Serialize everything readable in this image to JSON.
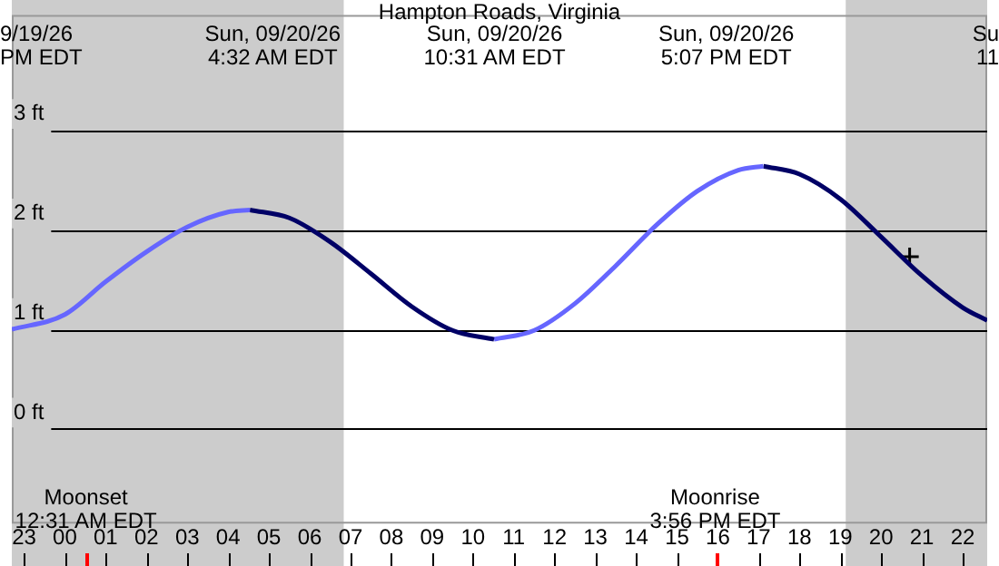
{
  "chart_data": {
    "type": "line",
    "title": "Hampton Roads, Virginia",
    "xlim": [
      "--09-19T22:42",
      "--09-20T22:36"
    ],
    "ylim": [
      -0.95,
      4.16
    ],
    "xticks": [
      {
        "value": "--09-19T23:00",
        "label": "23"
      },
      {
        "value": "--09-20T00:00",
        "label": "00"
      },
      {
        "value": "--09-20T01:00",
        "label": "01"
      },
      {
        "value": "--09-20T02:00",
        "label": "02"
      },
      {
        "value": "--09-20T03:00",
        "label": "03"
      },
      {
        "value": "--09-20T04:00",
        "label": "04"
      },
      {
        "value": "--09-20T05:00",
        "label": "05"
      },
      {
        "value": "--09-20T06:00",
        "label": "06"
      },
      {
        "value": "--09-20T07:00",
        "label": "07"
      },
      {
        "value": "--09-20T08:00",
        "label": "08"
      },
      {
        "value": "--09-20T09:00",
        "label": "09"
      },
      {
        "value": "--09-20T10:00",
        "label": "10"
      },
      {
        "value": "--09-20T11:00",
        "label": "11"
      },
      {
        "value": "--09-20T12:00",
        "label": "12"
      },
      {
        "value": "--09-20T13:00",
        "label": "13"
      },
      {
        "value": "--09-20T14:00",
        "label": "14"
      },
      {
        "value": "--09-20T15:00",
        "label": "15"
      },
      {
        "value": "--09-20T16:00",
        "label": "16"
      },
      {
        "value": "--09-20T17:00",
        "label": "17"
      },
      {
        "value": "--09-20T18:00",
        "label": "18"
      },
      {
        "value": "--09-20T19:00",
        "label": "19"
      },
      {
        "value": "--09-20T20:00",
        "label": "20"
      },
      {
        "value": "--09-20T21:00",
        "label": "21"
      },
      {
        "value": "--09-20T22:00",
        "label": "22"
      }
    ],
    "yticks": [
      {
        "value": 0,
        "label": "0 ft"
      },
      {
        "value": 1,
        "label": "1 ft"
      },
      {
        "value": 2,
        "label": "2 ft"
      },
      {
        "value": 3,
        "label": "3 ft"
      }
    ],
    "grid": "y",
    "legend": false,
    "marker": "none",
    "series": [
      {
        "color": "#6666ff",
        "x": [
          "--09-19T22:42",
          "--09-20T00:00",
          "--09-20T01:00",
          "--09-20T02:00",
          "--09-20T03:00",
          "--09-20T04:00",
          "--09-20T04:32"
        ],
        "values": [
          1.0,
          1.15,
          1.48,
          1.78,
          2.03,
          2.18,
          2.2
        ]
      },
      {
        "color": "#000066",
        "x": [
          "--09-20T04:32",
          "--09-20T05:30",
          "--09-20T06:30",
          "--09-20T07:30",
          "--09-20T08:30",
          "--09-20T09:30",
          "--09-20T10:31"
        ],
        "values": [
          2.2,
          2.12,
          1.88,
          1.56,
          1.23,
          0.99,
          0.9
        ]
      },
      {
        "color": "#6666ff",
        "x": [
          "--09-20T10:31",
          "--09-20T11:30",
          "--09-20T12:30",
          "--09-20T13:30",
          "--09-20T14:30",
          "--09-20T15:30",
          "--09-20T16:30",
          "--09-20T17:07"
        ],
        "values": [
          0.9,
          0.99,
          1.26,
          1.64,
          2.05,
          2.39,
          2.6,
          2.64
        ]
      },
      {
        "color": "#000066",
        "x": [
          "--09-20T17:07",
          "--09-20T18:00",
          "--09-20T19:00",
          "--09-20T20:00",
          "--09-20T21:00",
          "--09-20T22:00",
          "--09-20T22:36"
        ],
        "values": [
          2.64,
          2.56,
          2.31,
          1.93,
          1.54,
          1.22,
          1.09
        ]
      },
      {
        "type": "scatter",
        "marker": "cross",
        "color": "#000000",
        "x": [
          "--09-20T20:42"
        ],
        "values": [
          1.73
        ]
      }
    ],
    "bands": [
      {
        "axis": "x",
        "from": "--09-19T22:42",
        "to": "--09-20T06:50",
        "color": "#cccccc"
      },
      {
        "axis": "x",
        "from": "--09-20T19:08",
        "to": "--09-20T22:36",
        "color": "#cccccc"
      }
    ],
    "ref_lines": [
      {
        "axis": "x",
        "value": "--09-20T00:31",
        "label": "Moonset\n12:31 AM EDT",
        "color": "#ff0000"
      },
      {
        "axis": "x",
        "value": "--09-20T15:56",
        "label": "Moonrise\n3:56 PM EDT",
        "color": "#ff0000"
      }
    ],
    "annotations": [
      "9/19/26\nPM EDT",
      "Sun, 09/20/26\n4:32 AM EDT",
      "Sun, 09/20/26\n10:31 AM EDT",
      "Sun, 09/20/26\n5:07 PM EDT",
      "Su\n11"
    ]
  }
}
